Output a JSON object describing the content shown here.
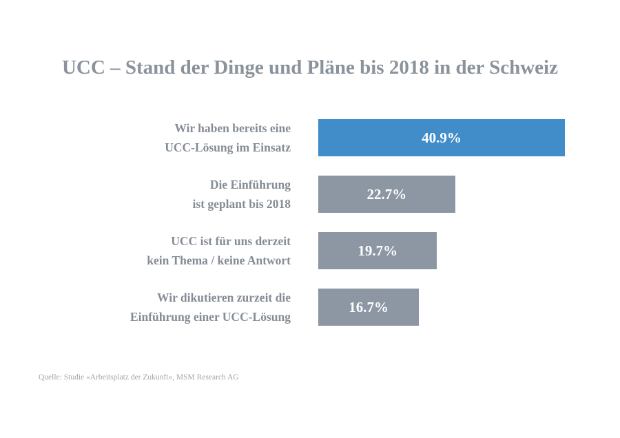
{
  "chart_data": {
    "type": "bar",
    "orientation": "horizontal",
    "title": "UCC – Stand der Dinge und Pläne bis 2018 in der Schweiz",
    "categories": [
      [
        "Wir haben bereits eine",
        "UCC-Lösung im Einsatz"
      ],
      [
        "Die Einführung",
        "ist geplant bis 2018"
      ],
      [
        "UCC ist für uns derzeit",
        "kein Thema / keine Antwort"
      ],
      [
        "Wir dikutieren zurzeit die",
        "Einführung einer UCC-Lösung"
      ]
    ],
    "values": [
      40.9,
      22.7,
      19.7,
      16.7
    ],
    "data_labels": [
      "40.9%",
      "22.7%",
      "19.7%",
      "16.7%"
    ],
    "colors": [
      "#408dc9",
      "#8c97a3",
      "#8c97a3",
      "#8c97a3"
    ],
    "grid": false,
    "source": "Quelle: Studie «Arbeitsplatz der Zukunft», MSM Research AG"
  }
}
